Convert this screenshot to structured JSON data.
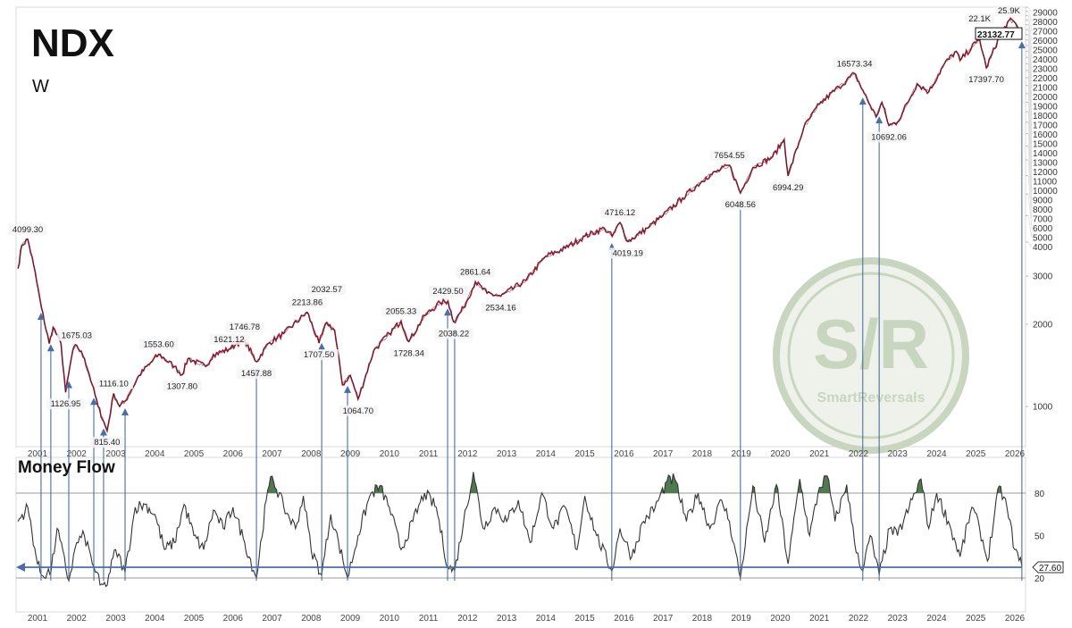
{
  "chart_data": [
    {
      "type": "line",
      "title": "NDX",
      "subtitle": "W",
      "y_scale": "log",
      "ylim": [
        700,
        29000
      ],
      "xlim": [
        2000.5,
        2026.2
      ],
      "x_tick_labels": [
        "2001",
        "2002",
        "2003",
        "2004",
        "2005",
        "2006",
        "2007",
        "2008",
        "2009",
        "2010",
        "2011",
        "2012",
        "2013",
        "2014",
        "2015",
        "2016",
        "2017",
        "2018",
        "2019",
        "2020",
        "2021",
        "2022",
        "2023",
        "2024",
        "2025",
        "2026"
      ],
      "y_tick_labels": [
        "1000",
        "2000",
        "3000",
        "4000",
        "5000",
        "6000",
        "7000",
        "8000",
        "9000",
        "10000",
        "11000",
        "12000",
        "13000",
        "14000",
        "15000",
        "16000",
        "17000",
        "18000",
        "19000",
        "20000",
        "21000",
        "22000",
        "23000",
        "24000",
        "25000",
        "26000",
        "27000",
        "28000",
        "29000"
      ],
      "last_value_label": "23132.77",
      "line_color": "#9e1b34",
      "series": [
        {
          "x": [
            2000.5,
            2000.6,
            2000.75,
            2000.9,
            2001.1,
            2001.3,
            2001.4,
            2001.6,
            2001.72,
            2001.9,
            2002.0,
            2002.2,
            2002.4,
            2002.55,
            2002.78,
            2002.95,
            2003.1,
            2003.25,
            2003.6,
            2003.9,
            2004.1,
            2004.5,
            2004.7,
            2004.85,
            2005.3,
            2005.5,
            2005.9,
            2006.1,
            2006.3,
            2006.6,
            2006.9,
            2007.3,
            2007.9,
            2008.2,
            2008.4,
            2008.6,
            2008.8,
            2009.0,
            2009.2,
            2009.6,
            2010.0,
            2010.3,
            2010.5,
            2010.9,
            2011.3,
            2011.5,
            2011.65,
            2011.9,
            2012.2,
            2012.5,
            2012.85,
            2013.5,
            2014.0,
            2014.5,
            2015.0,
            2015.5,
            2015.7,
            2015.9,
            2016.1,
            2016.6,
            2017.0,
            2017.5,
            2018.1,
            2018.7,
            2018.98,
            2019.3,
            2019.8,
            2020.1,
            2020.2,
            2020.6,
            2021.0,
            2021.5,
            2021.9,
            2022.15,
            2022.45,
            2022.6,
            2022.78,
            2023.0,
            2023.5,
            2023.8,
            2024.2,
            2024.5,
            2024.6,
            2025.0,
            2025.1,
            2025.27,
            2025.6,
            2025.85,
            2026.0,
            2026.18
          ],
          "y": [
            3200,
            3900,
            4099,
            3300,
            2300,
            1700,
            1950,
            1700,
            1126,
            1600,
            1675,
            1500,
            1200,
            1000,
            815,
            1116,
            1000,
            1050,
            1300,
            1450,
            1553,
            1400,
            1307,
            1500,
            1400,
            1550,
            1621,
            1700,
            1746,
            1457,
            1700,
            1850,
            2213,
            1707,
            2032,
            1900,
            1200,
            1300,
            1064,
            1600,
            1850,
            2055,
            1728,
            2150,
            2400,
            2429,
            2038,
            2300,
            2861,
            2600,
            2534,
            2900,
            3550,
            3800,
            4200,
            4500,
            4200,
            4716,
            4019,
            4500,
            5000,
            5800,
            6900,
            7654,
            6048,
            7500,
            8200,
            9500,
            6994,
            10500,
            12800,
            14800,
            16573,
            14000,
            11500,
            13000,
            10692,
            11000,
            15200,
            14200,
            18000,
            20000,
            18500,
            21500,
            22100,
            17397,
            22500,
            25900,
            25500,
            23132
          ]
        }
      ],
      "annotations": [
        {
          "x": 2000.75,
          "value": "4099.30",
          "pos": "above"
        },
        {
          "x": 2002.0,
          "value": "1675.03",
          "pos": "above"
        },
        {
          "x": 2001.72,
          "value": "1126.95",
          "pos": "below"
        },
        {
          "x": 2002.95,
          "value": "1116.10",
          "pos": "above"
        },
        {
          "x": 2002.78,
          "value": "815.40",
          "pos": "below"
        },
        {
          "x": 2004.1,
          "value": "1553.60",
          "pos": "above"
        },
        {
          "x": 2004.7,
          "value": "1307.80",
          "pos": "below"
        },
        {
          "x": 2005.9,
          "value": "1621.12",
          "pos": "above"
        },
        {
          "x": 2006.3,
          "value": "1746.78",
          "pos": "above"
        },
        {
          "x": 2006.6,
          "value": "1457.88",
          "pos": "below"
        },
        {
          "x": 2007.9,
          "value": "2213.86",
          "pos": "above"
        },
        {
          "x": 2008.4,
          "value": "2032.57",
          "pos": "above"
        },
        {
          "x": 2008.2,
          "value": "1707.50",
          "pos": "below"
        },
        {
          "x": 2009.2,
          "value": "1064.70",
          "pos": "below"
        },
        {
          "x": 2010.3,
          "value": "2055.33",
          "pos": "above"
        },
        {
          "x": 2010.5,
          "value": "1728.34",
          "pos": "below"
        },
        {
          "x": 2011.5,
          "value": "2429.50",
          "pos": "above"
        },
        {
          "x": 2011.65,
          "value": "2038.22",
          "pos": "below"
        },
        {
          "x": 2012.2,
          "value": "2861.64",
          "pos": "above"
        },
        {
          "x": 2012.85,
          "value": "2534.16",
          "pos": "below"
        },
        {
          "x": 2015.9,
          "value": "4716.12",
          "pos": "above"
        },
        {
          "x": 2016.1,
          "value": "4019.19",
          "pos": "below"
        },
        {
          "x": 2018.7,
          "value": "7654.55",
          "pos": "above"
        },
        {
          "x": 2018.98,
          "value": "6048.56",
          "pos": "below"
        },
        {
          "x": 2020.2,
          "value": "6994.29",
          "pos": "below"
        },
        {
          "x": 2021.9,
          "value": "16573.34",
          "pos": "above"
        },
        {
          "x": 2022.78,
          "value": "10692.06",
          "pos": "below"
        },
        {
          "x": 2025.1,
          "value": "22.1K",
          "pos": "above"
        },
        {
          "x": 2025.27,
          "value": "17397.70",
          "pos": "below"
        },
        {
          "x": 2025.85,
          "value": "25.9K",
          "pos": "above"
        }
      ],
      "signal_dates": [
        2001.09,
        2001.34,
        2001.8,
        2002.44,
        2002.69,
        2003.24,
        2006.6,
        2008.27,
        2008.93,
        2011.49,
        2011.67,
        2015.69,
        2018.98,
        2022.11,
        2022.53,
        2026.18
      ],
      "signal_color": "#4a6fa5"
    },
    {
      "type": "line",
      "title": "Money Flow",
      "ylim": [
        10,
        95
      ],
      "y_tick_labels": [
        "20",
        "50",
        "80"
      ],
      "x_tick_labels": [
        "2001",
        "2002",
        "2003",
        "2004",
        "2005",
        "2006",
        "2007",
        "2008",
        "2009",
        "2010",
        "2011",
        "2012",
        "2013",
        "2014",
        "2015",
        "2016",
        "2017",
        "2018",
        "2019",
        "2020",
        "2021",
        "2022",
        "2023",
        "2024",
        "2025",
        "2026"
      ],
      "reference_levels": [
        20,
        80
      ],
      "signal_level": 27.6,
      "last_value_label": "27.60",
      "overbought_fill_color": "#4e7a4e",
      "series": [
        {
          "x": [
            2000.5,
            2000.75,
            2001.0,
            2001.1,
            2001.35,
            2001.5,
            2001.8,
            2002.0,
            2002.2,
            2002.44,
            2002.6,
            2002.75,
            2003.0,
            2003.24,
            2003.5,
            2003.75,
            2004.0,
            2004.25,
            2004.5,
            2004.75,
            2005.0,
            2005.25,
            2005.5,
            2005.75,
            2006.0,
            2006.3,
            2006.6,
            2006.85,
            2007.0,
            2007.3,
            2007.6,
            2007.8,
            2008.0,
            2008.27,
            2008.5,
            2008.7,
            2008.93,
            2009.2,
            2009.5,
            2009.75,
            2010.0,
            2010.3,
            2010.6,
            2010.9,
            2011.2,
            2011.49,
            2011.67,
            2011.9,
            2012.15,
            2012.4,
            2012.7,
            2013.0,
            2013.3,
            2013.6,
            2013.9,
            2014.2,
            2014.5,
            2014.8,
            2015.0,
            2015.3,
            2015.69,
            2015.9,
            2016.2,
            2016.5,
            2016.8,
            2017.1,
            2017.3,
            2017.6,
            2017.9,
            2018.2,
            2018.5,
            2018.7,
            2018.98,
            2019.3,
            2019.6,
            2019.9,
            2020.2,
            2020.5,
            2020.75,
            2021.0,
            2021.2,
            2021.4,
            2021.7,
            2021.9,
            2022.11,
            2022.3,
            2022.53,
            2022.8,
            2023.0,
            2023.3,
            2023.6,
            2023.8,
            2024.0,
            2024.3,
            2024.6,
            2024.9,
            2025.1,
            2025.3,
            2025.6,
            2025.8,
            2026.0,
            2026.18
          ],
          "y": [
            60,
            70,
            30,
            22,
            25,
            55,
            18,
            45,
            50,
            28,
            15,
            14,
            40,
            24,
            70,
            72,
            65,
            40,
            45,
            72,
            50,
            40,
            68,
            55,
            70,
            45,
            20,
            75,
            92,
            70,
            55,
            78,
            40,
            22,
            65,
            45,
            20,
            50,
            78,
            85,
            70,
            40,
            60,
            80,
            70,
            28,
            25,
            60,
            95,
            55,
            70,
            60,
            75,
            45,
            80,
            55,
            70,
            40,
            78,
            50,
            25,
            55,
            35,
            60,
            70,
            88,
            90,
            60,
            80,
            55,
            75,
            60,
            20,
            85,
            45,
            86,
            30,
            90,
            50,
            84,
            92,
            60,
            86,
            45,
            25,
            50,
            22,
            55,
            50,
            70,
            90,
            55,
            80,
            60,
            35,
            70,
            55,
            32,
            85,
            70,
            40,
            28
          ]
        }
      ]
    }
  ],
  "watermark": {
    "logo_text": "S/R",
    "name": "SmartReversals",
    "color": "#c9d6bf"
  }
}
